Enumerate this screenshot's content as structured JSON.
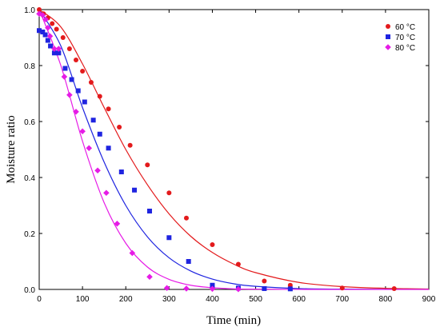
{
  "chart_data": {
    "type": "scatter",
    "title": "",
    "xlabel": "Time (min)",
    "ylabel": "Moisture ratio",
    "xlim": [
      0,
      900
    ],
    "ylim": [
      0,
      1.0
    ],
    "x_ticks": [
      "0",
      "100",
      "200",
      "300",
      "400",
      "500",
      "600",
      "700",
      "800",
      "900"
    ],
    "y_ticks": [
      "0.0",
      "0.2",
      "0.4",
      "0.6",
      "0.8",
      "1.0"
    ],
    "grid": false,
    "legend_position": "top-right",
    "series": [
      {
        "name": "60 °C",
        "color": "#e31a1c",
        "marker": "circle",
        "points": [
          [
            0,
            1.0
          ],
          [
            10,
            0.985
          ],
          [
            20,
            0.97
          ],
          [
            30,
            0.95
          ],
          [
            40,
            0.93
          ],
          [
            55,
            0.9
          ],
          [
            70,
            0.86
          ],
          [
            85,
            0.82
          ],
          [
            100,
            0.78
          ],
          [
            120,
            0.74
          ],
          [
            140,
            0.69
          ],
          [
            160,
            0.645
          ],
          [
            185,
            0.58
          ],
          [
            210,
            0.515
          ],
          [
            250,
            0.445
          ],
          [
            300,
            0.345
          ],
          [
            340,
            0.255
          ],
          [
            400,
            0.16
          ],
          [
            460,
            0.09
          ],
          [
            520,
            0.03
          ],
          [
            580,
            0.015
          ],
          [
            700,
            0.005
          ],
          [
            820,
            0.003
          ]
        ],
        "fit": [
          [
            0,
            1.0
          ],
          [
            50,
            0.938
          ],
          [
            100,
            0.806
          ],
          [
            150,
            0.65
          ],
          [
            200,
            0.5
          ],
          [
            250,
            0.374
          ],
          [
            300,
            0.27
          ],
          [
            350,
            0.19
          ],
          [
            400,
            0.132
          ],
          [
            450,
            0.09
          ],
          [
            500,
            0.06
          ],
          [
            600,
            0.025
          ],
          [
            700,
            0.01
          ],
          [
            800,
            0.004
          ],
          [
            900,
            0.0015
          ]
        ]
      },
      {
        "name": "70 °C",
        "color": "#1f24e0",
        "marker": "square",
        "points": [
          [
            0,
            0.925
          ],
          [
            8,
            0.92
          ],
          [
            14,
            0.91
          ],
          [
            20,
            0.89
          ],
          [
            26,
            0.87
          ],
          [
            35,
            0.845
          ],
          [
            45,
            0.845
          ],
          [
            60,
            0.79
          ],
          [
            75,
            0.75
          ],
          [
            90,
            0.71
          ],
          [
            105,
            0.67
          ],
          [
            125,
            0.605
          ],
          [
            140,
            0.555
          ],
          [
            160,
            0.505
          ],
          [
            190,
            0.42
          ],
          [
            220,
            0.355
          ],
          [
            255,
            0.28
          ],
          [
            300,
            0.185
          ],
          [
            345,
            0.1
          ],
          [
            400,
            0.015
          ],
          [
            460,
            0.005
          ],
          [
            520,
            0.003
          ],
          [
            580,
            0.002
          ]
        ],
        "fit": [
          [
            0,
            1.0
          ],
          [
            50,
            0.87
          ],
          [
            100,
            0.65
          ],
          [
            150,
            0.455
          ],
          [
            200,
            0.3
          ],
          [
            250,
            0.188
          ],
          [
            300,
            0.113
          ],
          [
            350,
            0.066
          ],
          [
            400,
            0.037
          ],
          [
            450,
            0.02
          ],
          [
            500,
            0.011
          ],
          [
            600,
            0.003
          ],
          [
            700,
            0.001
          ],
          [
            800,
            0.0003
          ],
          [
            900,
            0.0001
          ]
        ]
      },
      {
        "name": "80 °C",
        "color": "#e61be6",
        "marker": "diamond",
        "points": [
          [
            0,
            0.985
          ],
          [
            8,
            0.98
          ],
          [
            15,
            0.965
          ],
          [
            20,
            0.935
          ],
          [
            25,
            0.905
          ],
          [
            35,
            0.86
          ],
          [
            45,
            0.86
          ],
          [
            58,
            0.76
          ],
          [
            70,
            0.695
          ],
          [
            85,
            0.635
          ],
          [
            100,
            0.565
          ],
          [
            115,
            0.505
          ],
          [
            135,
            0.425
          ],
          [
            155,
            0.345
          ],
          [
            180,
            0.235
          ],
          [
            215,
            0.13
          ],
          [
            255,
            0.045
          ],
          [
            295,
            0.005
          ],
          [
            340,
            0.003
          ],
          [
            400,
            0.002
          ],
          [
            460,
            0.001
          ]
        ],
        "fit": [
          [
            0,
            1.0
          ],
          [
            50,
            0.8
          ],
          [
            100,
            0.53
          ],
          [
            150,
            0.31
          ],
          [
            200,
            0.165
          ],
          [
            250,
            0.08
          ],
          [
            300,
            0.036
          ],
          [
            350,
            0.015
          ],
          [
            400,
            0.006
          ],
          [
            450,
            0.002
          ],
          [
            500,
            0.001
          ],
          [
            600,
            0.0001
          ],
          [
            700,
            0
          ],
          [
            800,
            0
          ],
          [
            900,
            0
          ]
        ]
      }
    ]
  }
}
